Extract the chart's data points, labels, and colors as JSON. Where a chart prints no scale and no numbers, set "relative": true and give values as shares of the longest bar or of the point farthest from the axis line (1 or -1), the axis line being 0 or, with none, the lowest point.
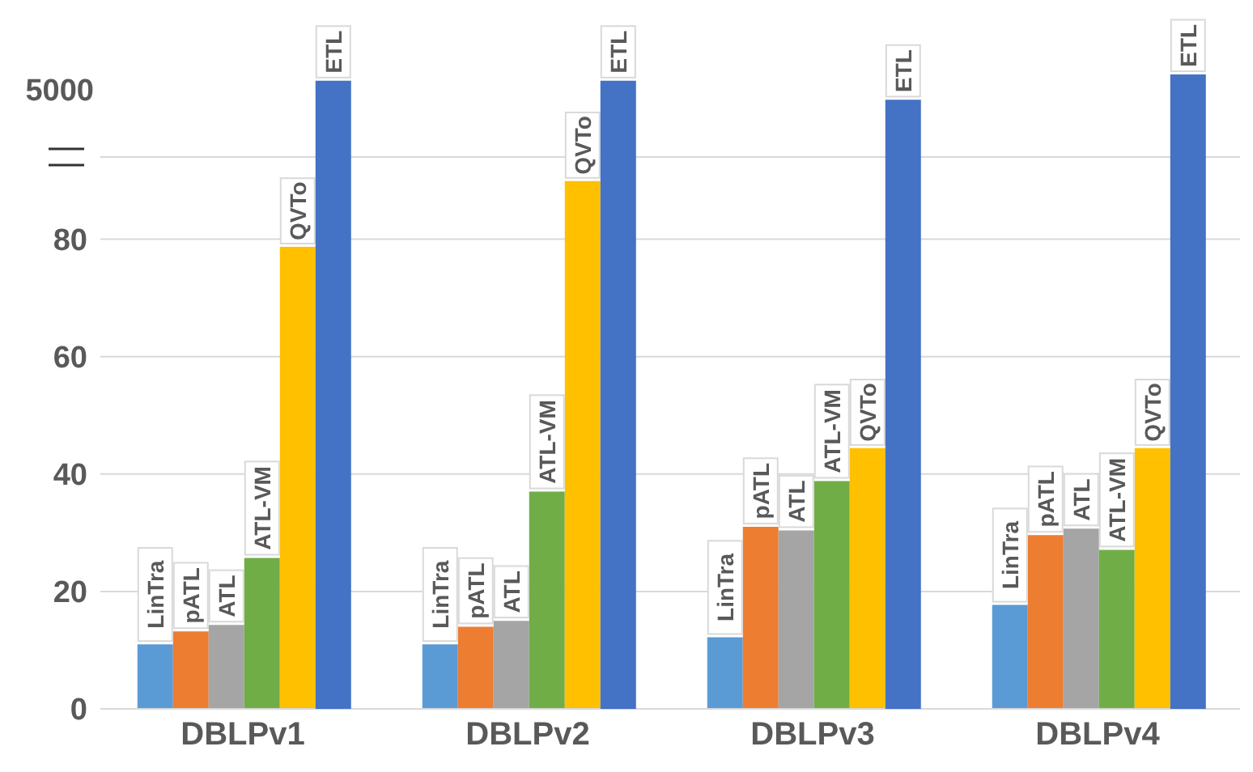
{
  "chart_data": [
    {
      "type": "bar",
      "categories": [
        null,
        null,
        null,
        null
      ],
      "series": [
        {
          "name": "LinTra",
          "color": "#5b9bd5",
          "values": [
            11,
            11,
            12.2,
            17.7
          ]
        },
        {
          "name": "pATL",
          "color": "#ed7d31",
          "values": [
            13.2,
            14,
            31,
            29.6
          ]
        },
        {
          "name": "ATL",
          "color": "#a5a5a5",
          "values": [
            14.3,
            15,
            30.4,
            30.7
          ]
        },
        {
          "name": "ATL-VM",
          "color": "#70ad47",
          "values": [
            25.7,
            37,
            38.8,
            27.1
          ]
        },
        {
          "name": "QVTo",
          "color": "#ffc000",
          "values": [
            78.7,
            89.9,
            44.4,
            44.4
          ]
        }
      ],
      "ylim": [
        0,
        94
      ],
      "yticks": [
        0,
        20,
        40,
        60,
        80
      ],
      "grid": "y",
      "tick_labels": "y"
    },
    {
      "type": "bar",
      "relative": true,
      "categories": [
        "DBLPv1",
        "DBLPv2",
        "DBLPv3",
        "DBLPv4"
      ],
      "series": [
        {
          "name": "ETL",
          "color": "#4472c4",
          "values": [
            0.99,
            0.99,
            0.96,
            1
          ]
        }
      ],
      "annotations": [
        "5000"
      ],
      "tick_labels": "x"
    }
  ]
}
